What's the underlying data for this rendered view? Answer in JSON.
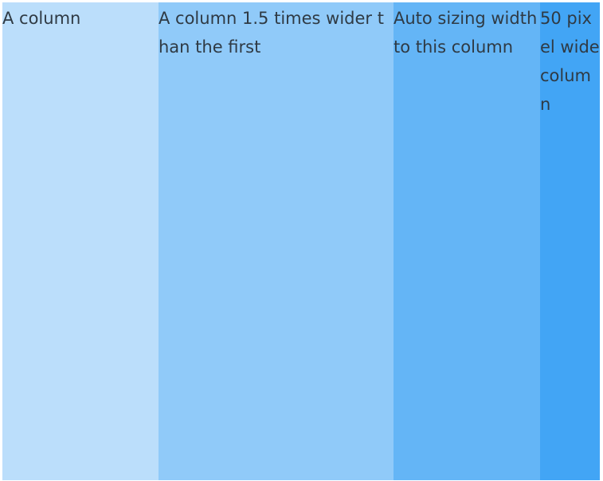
{
  "columns": [
    {
      "text": "A column",
      "color": "#bbdefb"
    },
    {
      "text": "A column 1.5 times wider than the first",
      "color": "#90caf9"
    },
    {
      "text": "Auto sizing width to this column",
      "color": "#64b5f6"
    },
    {
      "text": "50 pixel wide column",
      "color": "#42a5f5"
    }
  ]
}
